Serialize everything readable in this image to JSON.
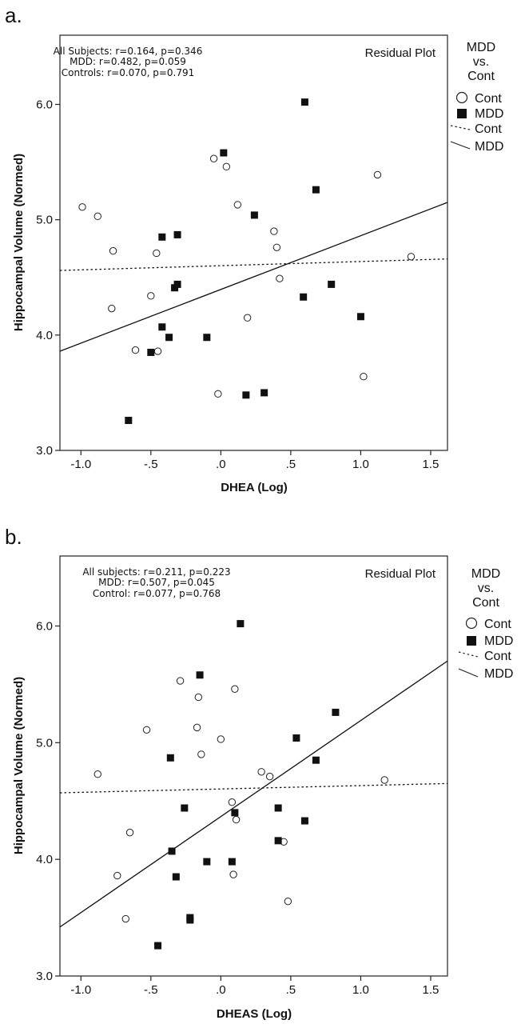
{
  "chart_data": [
    {
      "type": "scatter",
      "panel_label": "a.",
      "xlabel": "DHEA (Log)",
      "ylabel": "Hippocampal Volume (Normed)",
      "plot_note": "Residual Plot",
      "xlim": [
        -1.15,
        1.62
      ],
      "ylim": [
        3.0,
        6.6
      ],
      "x_ticks": [
        "-1.0",
        "-.5",
        ".0",
        ".5",
        "1.0",
        "1.5"
      ],
      "x_tick_values": [
        -1.0,
        -0.5,
        0.0,
        0.5,
        1.0,
        1.5
      ],
      "y_ticks": [
        "3.0",
        "4.0",
        "5.0",
        "6.0"
      ],
      "y_tick_values": [
        3.0,
        4.0,
        5.0,
        6.0
      ],
      "stats": [
        "All Subjects: r=0.164, p=0.346",
        "MDD: r=0.482, p=0.059",
        "Controls: r=0.070, p=0.791"
      ],
      "legend": {
        "title": [
          "MDD",
          "vs.",
          "Cont"
        ],
        "items": [
          "Cont",
          "MDD",
          "Cont",
          "MDD"
        ]
      },
      "series": [
        {
          "name": "Cont",
          "marker": "open-circle",
          "points": [
            [
              -0.99,
              5.11
            ],
            [
              -0.88,
              5.03
            ],
            [
              -0.77,
              4.73
            ],
            [
              -0.78,
              4.23
            ],
            [
              -0.61,
              3.87
            ],
            [
              -0.5,
              4.34
            ],
            [
              -0.46,
              4.71
            ],
            [
              -0.45,
              3.86
            ],
            [
              -0.05,
              5.53
            ],
            [
              0.04,
              5.46
            ],
            [
              0.12,
              5.13
            ],
            [
              0.19,
              4.15
            ],
            [
              -0.02,
              3.49
            ],
            [
              0.38,
              4.9
            ],
            [
              0.4,
              4.76
            ],
            [
              0.42,
              4.49
            ],
            [
              1.02,
              3.64
            ],
            [
              1.12,
              5.39
            ],
            [
              1.36,
              4.68
            ]
          ]
        },
        {
          "name": "MDD",
          "marker": "filled-square",
          "points": [
            [
              0.6,
              6.02
            ],
            [
              0.02,
              5.58
            ],
            [
              0.68,
              5.26
            ],
            [
              0.24,
              5.04
            ],
            [
              -0.31,
              4.87
            ],
            [
              -0.42,
              4.85
            ],
            [
              -0.33,
              4.41
            ],
            [
              -0.31,
              4.44
            ],
            [
              -0.42,
              4.07
            ],
            [
              -0.37,
              3.98
            ],
            [
              -0.1,
              3.98
            ],
            [
              -0.5,
              3.85
            ],
            [
              -0.66,
              3.26
            ],
            [
              0.18,
              3.48
            ],
            [
              0.31,
              3.5
            ],
            [
              0.59,
              4.33
            ],
            [
              0.79,
              4.44
            ],
            [
              1.0,
              4.16
            ]
          ]
        }
      ],
      "fit_lines": [
        {
          "name": "Cont",
          "style": "dotted",
          "points": [
            [
              -1.15,
              4.56
            ],
            [
              1.62,
              4.66
            ]
          ]
        },
        {
          "name": "MDD",
          "style": "solid",
          "points": [
            [
              -1.15,
              3.86
            ],
            [
              1.62,
              5.15
            ]
          ]
        }
      ]
    },
    {
      "type": "scatter",
      "panel_label": "b.",
      "xlabel": "DHEAS (Log)",
      "ylabel": "Hippocampal Volume (Normed)",
      "plot_note": "Residual Plot",
      "xlim": [
        -1.15,
        1.62
      ],
      "ylim": [
        3.0,
        6.6
      ],
      "x_ticks": [
        "-1.0",
        "-.5",
        ".0",
        ".5",
        "1.0",
        "1.5"
      ],
      "x_tick_values": [
        -1.0,
        -0.5,
        0.0,
        0.5,
        1.0,
        1.5
      ],
      "y_ticks": [
        "3.0",
        "4.0",
        "5.0",
        "6.0"
      ],
      "y_tick_values": [
        3.0,
        4.0,
        5.0,
        6.0
      ],
      "stats": [
        "All subjects: r=0.211, p=0.223",
        "MDD: r=0.507, p=0.045",
        "Control:  r=0.077, p=0.768"
      ],
      "legend": {
        "title": [
          "MDD",
          "vs.",
          "Cont"
        ],
        "items": [
          "Cont",
          "MDD",
          "Cont",
          "MDD"
        ]
      },
      "series": [
        {
          "name": "Cont",
          "marker": "open-circle",
          "points": [
            [
              -0.88,
              4.73
            ],
            [
              -0.53,
              5.11
            ],
            [
              -0.29,
              5.53
            ],
            [
              -0.16,
              5.39
            ],
            [
              -0.17,
              5.13
            ],
            [
              -0.14,
              4.9
            ],
            [
              0.0,
              5.03
            ],
            [
              0.1,
              5.46
            ],
            [
              -0.65,
              4.23
            ],
            [
              -0.74,
              3.86
            ],
            [
              -0.68,
              3.49
            ],
            [
              0.29,
              4.75
            ],
            [
              0.35,
              4.71
            ],
            [
              0.08,
              4.49
            ],
            [
              0.11,
              4.34
            ],
            [
              0.09,
              3.87
            ],
            [
              0.45,
              4.15
            ],
            [
              0.48,
              3.64
            ],
            [
              1.17,
              4.68
            ]
          ]
        },
        {
          "name": "MDD",
          "marker": "filled-square",
          "points": [
            [
              0.14,
              6.02
            ],
            [
              -0.15,
              5.58
            ],
            [
              0.82,
              5.26
            ],
            [
              0.54,
              5.04
            ],
            [
              0.68,
              4.85
            ],
            [
              -0.36,
              4.87
            ],
            [
              -0.26,
              4.44
            ],
            [
              0.41,
              4.44
            ],
            [
              0.1,
              4.4
            ],
            [
              0.6,
              4.33
            ],
            [
              -0.35,
              4.07
            ],
            [
              0.41,
              4.16
            ],
            [
              -0.1,
              3.98
            ],
            [
              0.08,
              3.98
            ],
            [
              -0.32,
              3.85
            ],
            [
              -0.22,
              3.5
            ],
            [
              -0.22,
              3.48
            ],
            [
              -0.45,
              3.26
            ]
          ]
        }
      ],
      "fit_lines": [
        {
          "name": "Cont",
          "style": "dotted",
          "points": [
            [
              -1.15,
              4.57
            ],
            [
              1.62,
              4.65
            ]
          ]
        },
        {
          "name": "MDD",
          "style": "solid",
          "points": [
            [
              -1.15,
              3.42
            ],
            [
              1.62,
              5.7
            ]
          ]
        }
      ]
    }
  ]
}
